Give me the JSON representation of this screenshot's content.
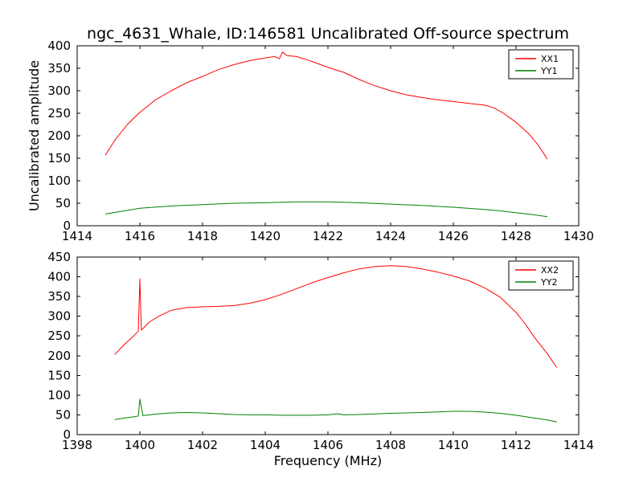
{
  "figure": {
    "title": "ngc_4631_Whale, ID:146581 Uncalibrated Off-source spectrum",
    "background": "#ffffff",
    "frame_color": "#000000"
  },
  "chart_data": [
    {
      "type": "line",
      "title": "ngc_4631_Whale, ID:146581 Uncalibrated Off-source spectrum",
      "xlabel": "",
      "ylabel": "Uncalibrated amplitude",
      "xlim": [
        1414,
        1430
      ],
      "ylim": [
        0,
        400
      ],
      "xticks": [
        1414,
        1416,
        1418,
        1420,
        1422,
        1424,
        1426,
        1428,
        1430
      ],
      "yticks": [
        0,
        50,
        100,
        150,
        200,
        250,
        300,
        350,
        400
      ],
      "grid": false,
      "legend_position": "upper right",
      "series": [
        {
          "name": "XX1",
          "color": "#ff0000",
          "x": [
            1414.9,
            1415.2,
            1415.6,
            1416.0,
            1416.5,
            1417.0,
            1417.5,
            1418.0,
            1418.5,
            1419.0,
            1419.5,
            1420.0,
            1420.3,
            1420.45,
            1420.55,
            1420.7,
            1421.0,
            1421.5,
            1422.0,
            1422.5,
            1423.0,
            1423.5,
            1424.0,
            1424.5,
            1425.0,
            1425.5,
            1426.0,
            1426.5,
            1427.0,
            1427.3,
            1427.6,
            1428.0,
            1428.4,
            1428.7,
            1429.0
          ],
          "y": [
            157,
            190,
            225,
            252,
            280,
            300,
            318,
            332,
            347,
            358,
            367,
            373,
            376,
            371,
            386,
            378,
            376,
            365,
            352,
            341,
            325,
            311,
            300,
            291,
            285,
            280,
            276,
            272,
            268,
            262,
            250,
            230,
            205,
            180,
            148
          ]
        },
        {
          "name": "YY1",
          "color": "#008000",
          "x": [
            1414.9,
            1415.5,
            1416,
            1417,
            1418,
            1419,
            1420,
            1421,
            1422,
            1423,
            1424,
            1425,
            1426,
            1427,
            1427.5,
            1428,
            1428.5,
            1429
          ],
          "y": [
            26,
            33,
            39,
            44,
            47,
            50,
            51,
            53,
            53,
            51,
            48,
            45,
            41,
            36,
            33,
            29,
            25,
            20
          ]
        }
      ]
    },
    {
      "type": "line",
      "title": "",
      "xlabel": "Frequency (MHz)",
      "ylabel": "",
      "xlim": [
        1398,
        1414
      ],
      "ylim": [
        0,
        450
      ],
      "xticks": [
        1398,
        1400,
        1402,
        1404,
        1406,
        1408,
        1410,
        1412,
        1414
      ],
      "yticks": [
        0,
        50,
        100,
        150,
        200,
        250,
        300,
        350,
        400,
        450
      ],
      "grid": false,
      "legend_position": "upper right",
      "series": [
        {
          "name": "XX2",
          "color": "#ff0000",
          "x": [
            1399.2,
            1399.5,
            1399.8,
            1399.95,
            1400.0,
            1400.05,
            1400.3,
            1400.6,
            1401.0,
            1401.5,
            1402.0,
            1402.5,
            1403.0,
            1403.5,
            1404.0,
            1404.5,
            1405.0,
            1405.5,
            1406.0,
            1406.5,
            1407.0,
            1407.5,
            1408.0,
            1408.5,
            1409.0,
            1409.5,
            1410.0,
            1410.5,
            1411.0,
            1411.5,
            1412.0,
            1412.3,
            1412.6,
            1413.0,
            1413.3
          ],
          "y": [
            203,
            228,
            250,
            262,
            395,
            265,
            285,
            300,
            315,
            322,
            324,
            325,
            327,
            333,
            342,
            355,
            370,
            385,
            398,
            410,
            420,
            426,
            428,
            426,
            420,
            412,
            402,
            390,
            372,
            348,
            310,
            280,
            245,
            205,
            170
          ]
        },
        {
          "name": "YY2",
          "color": "#008000",
          "x": [
            1399.2,
            1399.5,
            1399.8,
            1399.95,
            1400.0,
            1400.1,
            1400.5,
            1401.0,
            1401.5,
            1402.0,
            1402.5,
            1403.0,
            1403.5,
            1404.0,
            1404.5,
            1405.0,
            1405.5,
            1406.0,
            1406.3,
            1406.5,
            1407.0,
            1408.0,
            1409.0,
            1410.0,
            1410.5,
            1411.0,
            1411.5,
            1412.0,
            1412.5,
            1413.0,
            1413.3
          ],
          "y": [
            38,
            42,
            45,
            47,
            90,
            48,
            52,
            55,
            56,
            55,
            53,
            51,
            50,
            50,
            49,
            49,
            49,
            50,
            53,
            50,
            51,
            54,
            56,
            59,
            59,
            57,
            54,
            49,
            43,
            37,
            32
          ]
        }
      ]
    }
  ]
}
